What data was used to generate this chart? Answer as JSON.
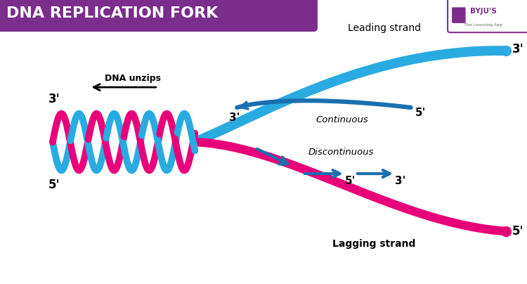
{
  "title": "DNA REPLICATION FORK",
  "title_bg_color": "#7B2D8B",
  "title_text_color": "#FFFFFF",
  "bg_color": "#FFFFFF",
  "strand_pink": "#E8007A",
  "strand_cyan": "#29ABE2",
  "arrow_blue": "#1A6FAF",
  "leading_label": "Leading strand",
  "lagging_label": "Lagging strand",
  "continuous_label": "Continuous",
  "discontinuous_label": "Discontinuous",
  "dna_unzips_label": "DNA unzips"
}
